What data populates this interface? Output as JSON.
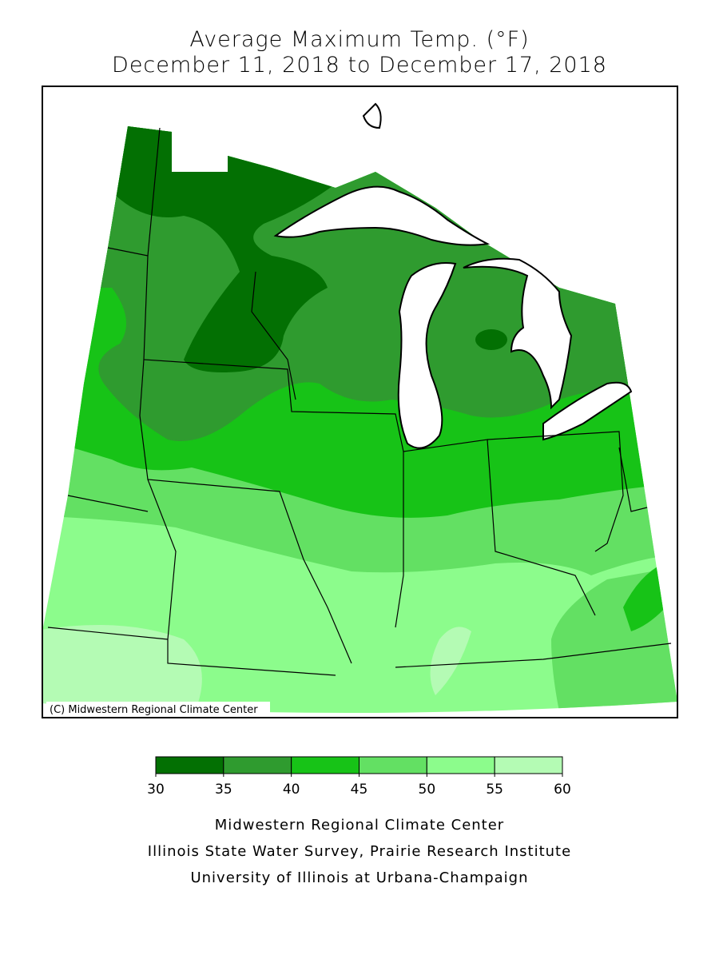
{
  "header": {
    "title": "Average Maximum Temp. (°F)",
    "subtitle": "December 11, 2018 to December 17, 2018"
  },
  "map": {
    "copyright": "(C) Midwestern Regional Climate Center"
  },
  "legend": {
    "bins": [
      30,
      35,
      40,
      45,
      50,
      55,
      60
    ],
    "colors": [
      "#037003",
      "#2f9b2f",
      "#17c317",
      "#63e063",
      "#8cfc8c",
      "#b4fbb4"
    ]
  },
  "footer": {
    "lines": [
      "Midwestern Regional Climate Center",
      "Illinois State Water Survey, Prairie Research Institute",
      "University of Illinois at Urbana-Champaign"
    ]
  }
}
